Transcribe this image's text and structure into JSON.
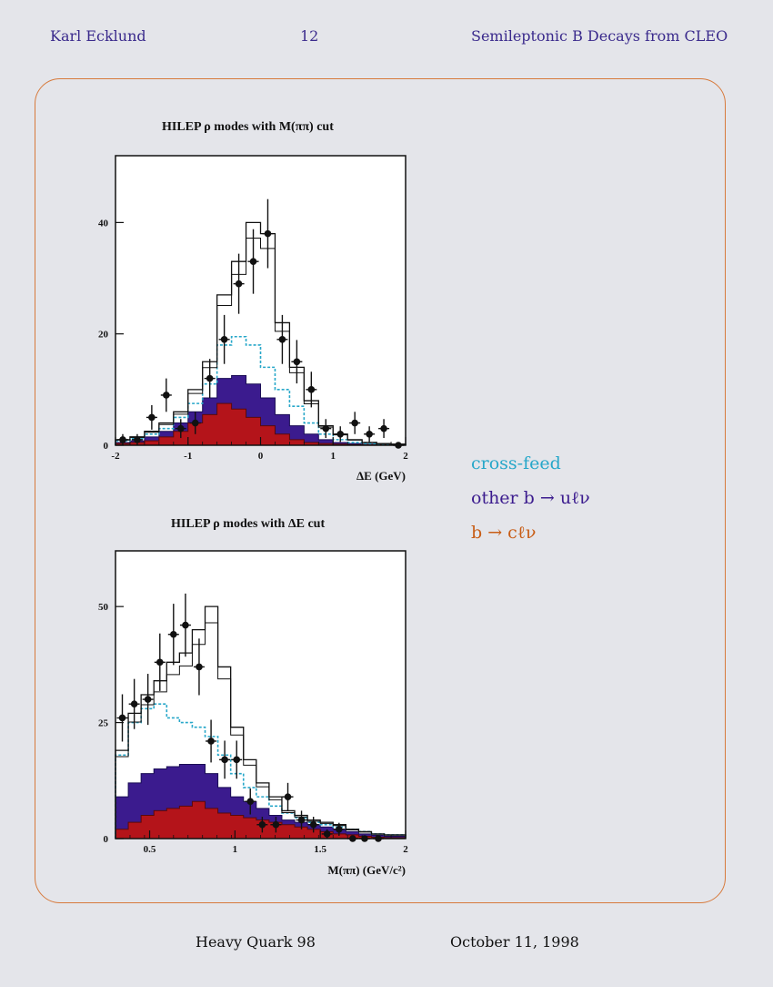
{
  "header": {
    "left": "Karl Ecklund",
    "center": "12",
    "right": "Semileptonic B Decays from CLEO"
  },
  "footer": {
    "left": "Heavy Quark 98",
    "right": "October 11, 1998"
  },
  "legend": {
    "cross_feed": "cross-feed",
    "other": "other b → uℓν",
    "bc": "b → cℓν"
  },
  "colors": {
    "header_text": "#3a2a8c",
    "frame": "#d77a3c",
    "cross_feed": "#27a7c9",
    "other_bulnu": "#3b1b8e",
    "bclnu": "#b4141a"
  },
  "chart_data": [
    {
      "type": "bar",
      "title": "HILEP ρ modes with M(ππ) cut",
      "xlabel": "ΔE (GeV)",
      "ylabel": "",
      "xlim": [
        -2,
        2
      ],
      "ylim": [
        0,
        52
      ],
      "xticks": [
        "-2",
        "-1",
        "0",
        "1",
        "2"
      ],
      "yticks": [
        "0",
        "20",
        "40"
      ],
      "bin_edges": [
        -2,
        -1.8,
        -1.6,
        -1.4,
        -1.2,
        -1.0,
        -0.8,
        -0.6,
        -0.4,
        -0.2,
        0,
        0.2,
        0.4,
        0.6,
        0.8,
        1.0,
        1.2,
        1.4,
        1.6,
        1.8,
        2.0
      ],
      "series": [
        {
          "name": "b → cℓν",
          "values": [
            0.3,
            0.5,
            0.8,
            1.5,
            2.5,
            4,
            5.5,
            7.5,
            6.5,
            5,
            3.5,
            2,
            1,
            0.5,
            0.3,
            0.2,
            0.1,
            0.1,
            0.1,
            0.1
          ]
        },
        {
          "name": "other b → uℓν",
          "values": [
            0.5,
            0.8,
            1.5,
            2.5,
            4,
            6,
            8.5,
            12,
            12.5,
            11,
            8.5,
            5.5,
            3.5,
            2,
            1,
            0.5,
            0.3,
            0.2,
            0.1,
            0.1
          ]
        },
        {
          "name": "cross-feed",
          "values": [
            0.8,
            1.2,
            2,
            3,
            5,
            7.5,
            11,
            18,
            19.5,
            18,
            14,
            10,
            7,
            4,
            2,
            1,
            0.5,
            0.3,
            0.2,
            0.1
          ]
        },
        {
          "name": "total",
          "values": [
            1,
            1.5,
            2.5,
            4,
            6,
            10,
            15,
            27,
            33,
            40,
            38,
            22,
            14,
            8,
            3.5,
            2,
            1,
            0.5,
            0.3,
            0.2
          ]
        }
      ],
      "data_points": {
        "x": [
          -1.9,
          -1.7,
          -1.5,
          -1.3,
          -1.1,
          -0.9,
          -0.7,
          -0.5,
          -0.3,
          -0.1,
          0.1,
          0.3,
          0.5,
          0.7,
          0.9,
          1.1,
          1.3,
          1.5,
          1.7,
          1.9
        ],
        "y": [
          1,
          1,
          5,
          9,
          3,
          4,
          12,
          19,
          29,
          33,
          38,
          19,
          15,
          10,
          3,
          2,
          4,
          2,
          3,
          0
        ],
        "err": [
          1,
          1,
          2.2,
          3,
          1.7,
          2,
          3.5,
          4.4,
          5.4,
          5.8,
          6.2,
          4.4,
          3.9,
          3.2,
          1.7,
          1.4,
          2,
          1.4,
          1.7,
          0.5
        ]
      }
    },
    {
      "type": "bar",
      "title": "HILEP ρ modes with ΔE cut",
      "xlabel": "M(ππ) (GeV/c²)",
      "ylabel": "",
      "xlim": [
        0.3,
        2.0
      ],
      "ylim": [
        0,
        62
      ],
      "xticks": [
        "0.5",
        "1",
        "1.5",
        "2"
      ],
      "yticks": [
        "0",
        "25",
        "50"
      ],
      "bin_edges": [
        0.3,
        0.375,
        0.45,
        0.525,
        0.6,
        0.675,
        0.75,
        0.825,
        0.9,
        0.975,
        1.05,
        1.125,
        1.2,
        1.275,
        1.35,
        1.425,
        1.5,
        1.575,
        1.65,
        1.725,
        1.8,
        1.875,
        2.0
      ],
      "series": [
        {
          "name": "b → cℓν",
          "values": [
            2,
            3.5,
            5,
            6,
            6.5,
            7,
            8,
            6.5,
            5.5,
            5,
            4.5,
            4,
            3.5,
            3,
            2.5,
            2,
            1.5,
            1,
            0.8,
            0.5,
            0.3,
            0.2
          ]
        },
        {
          "name": "other b → uℓν",
          "values": [
            9,
            12,
            14,
            15,
            15.5,
            16,
            16,
            14,
            11,
            9,
            8,
            6.5,
            5,
            4,
            3.5,
            3,
            2.5,
            2,
            1.5,
            1,
            0.7,
            0.5
          ]
        },
        {
          "name": "cross-feed",
          "values": [
            18,
            25,
            28,
            29,
            26,
            25,
            24,
            22,
            18,
            14,
            11,
            9,
            7,
            5.5,
            4.5,
            3.5,
            3,
            2.5,
            2,
            1.5,
            1,
            0.8
          ]
        },
        {
          "name": "total",
          "values": [
            19,
            27,
            31,
            34,
            38,
            40,
            45,
            50,
            37,
            24,
            17,
            12,
            9,
            6,
            5,
            4,
            3.5,
            3,
            2,
            1.5,
            1,
            0.8
          ]
        }
      ],
      "data_points": {
        "x": [
          0.34,
          0.41,
          0.49,
          0.56,
          0.64,
          0.71,
          0.79,
          0.86,
          0.94,
          1.01,
          1.09,
          1.16,
          1.24,
          1.31,
          1.39,
          1.46,
          1.54,
          1.61,
          1.69,
          1.76,
          1.84
        ],
        "y": [
          26,
          29,
          30,
          38,
          44,
          46,
          37,
          21,
          17,
          17,
          8,
          3,
          3,
          9,
          4,
          3,
          1,
          2,
          0,
          0,
          0
        ],
        "err": [
          5.1,
          5.4,
          5.5,
          6.2,
          6.6,
          6.8,
          6.1,
          4.6,
          4.1,
          4.1,
          2.8,
          1.7,
          1.7,
          3,
          2,
          1.7,
          1,
          1.4,
          0.5,
          0.5,
          0.5
        ]
      }
    }
  ]
}
